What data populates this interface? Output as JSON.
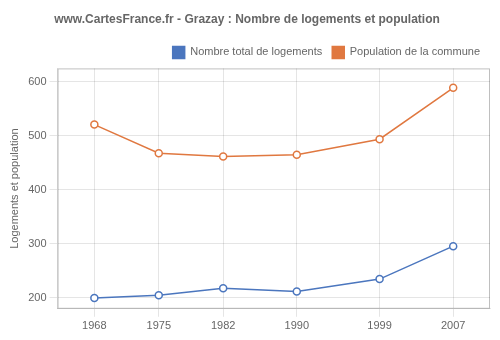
{
  "chart_data": {
    "type": "line",
    "title": "www.CartesFrance.fr - Grazay : Nombre de logements et population",
    "y_label": "Logements et population",
    "x": [
      1968,
      1975,
      1982,
      1990,
      1999,
      2007
    ],
    "series": [
      {
        "name": "Nombre total de logements",
        "color": "#4b76be",
        "values": [
          200,
          205,
          218,
          212,
          235,
          296
        ],
        "marker": "circle",
        "line_style": "solid"
      },
      {
        "name": "Population de la commune",
        "color": "#e07840",
        "values": [
          521,
          468,
          462,
          465,
          494,
          589
        ],
        "marker": "circle",
        "line_style": "solid"
      }
    ],
    "xlim": [
      1964,
      2011
    ],
    "xticks": [
      1968,
      1975,
      1982,
      1990,
      1999,
      2007
    ],
    "ylim": [
      180,
      625
    ],
    "yticks": [
      200,
      300,
      400,
      500,
      600
    ],
    "grid": true,
    "legend": "upper right"
  }
}
